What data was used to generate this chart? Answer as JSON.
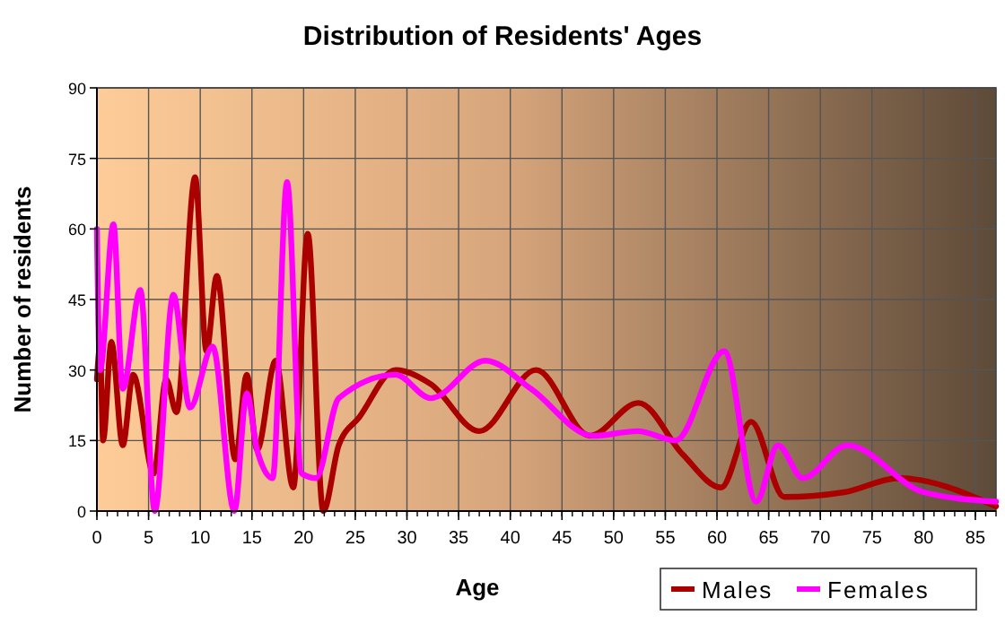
{
  "chart_data": {
    "type": "line",
    "title": "Distribution of Residents' Ages",
    "xlabel": "Age",
    "ylabel": "Number of residents",
    "xlim": [
      0,
      87
    ],
    "xticks": [
      0,
      5,
      10,
      15,
      20,
      25,
      30,
      35,
      40,
      45,
      50,
      55,
      60,
      65,
      70,
      75,
      80,
      85
    ],
    "ylim": [
      0,
      90
    ],
    "yticks": [
      0,
      15,
      30,
      45,
      60,
      75,
      90
    ],
    "grid": true,
    "legend": "bottom right",
    "marker": "none",
    "line_style": "solid",
    "series": [
      {
        "name": "Males",
        "color": "#aa0000",
        "x": [
          0,
          0.3,
          0.6,
          1.4,
          2.5,
          3.5,
          5.5,
          6.7,
          7.7,
          9.5,
          10.6,
          11.6,
          13.4,
          14.5,
          15.5,
          17.3,
          19,
          20.4,
          21.9,
          23.4,
          25.4,
          28.9,
          32.3,
          37,
          42.5,
          47.7,
          52.4,
          56.7,
          60.4,
          63.3,
          66.5,
          72.3,
          77.6,
          87
        ],
        "values": [
          28,
          35,
          15,
          36,
          14,
          29,
          8,
          28,
          21,
          71,
          34,
          50,
          11,
          29,
          13,
          32,
          5,
          59,
          0,
          14,
          20,
          30,
          27,
          17,
          30,
          16,
          23,
          12,
          5,
          19,
          3,
          4,
          7,
          1
        ]
      },
      {
        "name": "Females",
        "color": "#ff00ff",
        "x": [
          0,
          0.3,
          1.6,
          2.5,
          4.2,
          5.6,
          7.4,
          9,
          11.2,
          13.3,
          14.5,
          15.5,
          17,
          18.4,
          19.8,
          21.2,
          23.4,
          28.9,
          32.3,
          37.6,
          42,
          48,
          52.3,
          56,
          60.7,
          63.8,
          65.9,
          68.3,
          72.6,
          80,
          87
        ],
        "values": [
          60,
          30,
          61,
          26,
          47,
          0,
          46,
          22,
          35,
          0,
          25,
          13,
          7,
          70,
          8,
          7,
          24,
          29,
          24,
          32,
          26,
          16,
          17,
          15,
          34,
          2,
          14,
          7,
          14,
          4,
          2
        ]
      }
    ]
  }
}
